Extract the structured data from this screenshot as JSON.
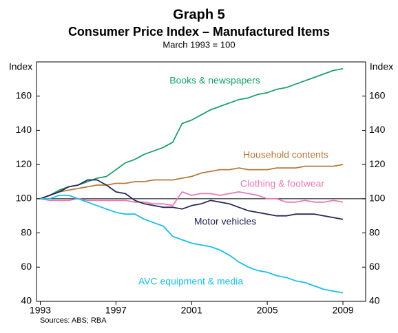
{
  "chart_data": {
    "type": "line",
    "title": "Graph 5",
    "subtitle": "Consumer Price Index – Manufactured Items",
    "note": "March 1993 = 100",
    "y_label": "Index",
    "y2_label": "Index",
    "source": "Sources: ABS; RBA",
    "x": [
      1993,
      1993.5,
      1994,
      1994.5,
      1995,
      1995.5,
      1996,
      1996.5,
      1997,
      1997.5,
      1998,
      1998.5,
      1999,
      1999.5,
      2000,
      2000.5,
      2001,
      2001.5,
      2002,
      2002.5,
      2003,
      2003.5,
      2004,
      2004.5,
      2005,
      2005.5,
      2006,
      2006.5,
      2007,
      2007.5,
      2008,
      2008.5,
      2009
    ],
    "xlim": [
      1992.8,
      2010.2
    ],
    "xticks": [
      1993,
      1997,
      2001,
      2005,
      2009
    ],
    "ylim": [
      40,
      180
    ],
    "yticks": [
      40,
      60,
      80,
      100,
      120,
      140,
      160
    ],
    "baseline": 100,
    "series": [
      {
        "name": "Books & newspapers",
        "color": "#1aa06a",
        "values": [
          100,
          102,
          105,
          107,
          108,
          110,
          112,
          113,
          117,
          121,
          123,
          126,
          128,
          130,
          133,
          144,
          146,
          149,
          152,
          154,
          156,
          158,
          159,
          161,
          162,
          164,
          165,
          167,
          169,
          171,
          173,
          175,
          176
        ]
      },
      {
        "name": "Household contents",
        "color": "#b5793a",
        "values": [
          100,
          102,
          104,
          105,
          106,
          107,
          108,
          108,
          109,
          109,
          110,
          110,
          111,
          111,
          111,
          112,
          113,
          115,
          116,
          117,
          117,
          118,
          117,
          117,
          117,
          118,
          118,
          118,
          119,
          119,
          119,
          119,
          120
        ]
      },
      {
        "name": "Clothing & footwear",
        "color": "#e879b4",
        "values": [
          100,
          99,
          99,
          99,
          100,
          99,
          99,
          99,
          99,
          99,
          98,
          98,
          97,
          97,
          96,
          104,
          102,
          103,
          103,
          102,
          103,
          104,
          103,
          102,
          100,
          100,
          98,
          98,
          99,
          98,
          98,
          99,
          98
        ]
      },
      {
        "name": "Motor vehicles",
        "color": "#262654",
        "values": [
          100,
          102,
          104,
          107,
          108,
          111,
          111,
          108,
          104,
          103,
          99,
          97,
          96,
          95,
          95,
          94,
          96,
          97,
          99,
          98,
          97,
          95,
          93,
          92,
          91,
          90,
          90,
          91,
          91,
          91,
          90,
          89,
          88
        ]
      },
      {
        "name": "AVC equipment & media",
        "color": "#16bfe8",
        "values": [
          100,
          100,
          102,
          102,
          100,
          98,
          96,
          94,
          92,
          91,
          91,
          88,
          86,
          84,
          78,
          76,
          74,
          73,
          72,
          70,
          67,
          63,
          60,
          58,
          57,
          55,
          54,
          52,
          51,
          49,
          47,
          46,
          45
        ]
      }
    ]
  }
}
